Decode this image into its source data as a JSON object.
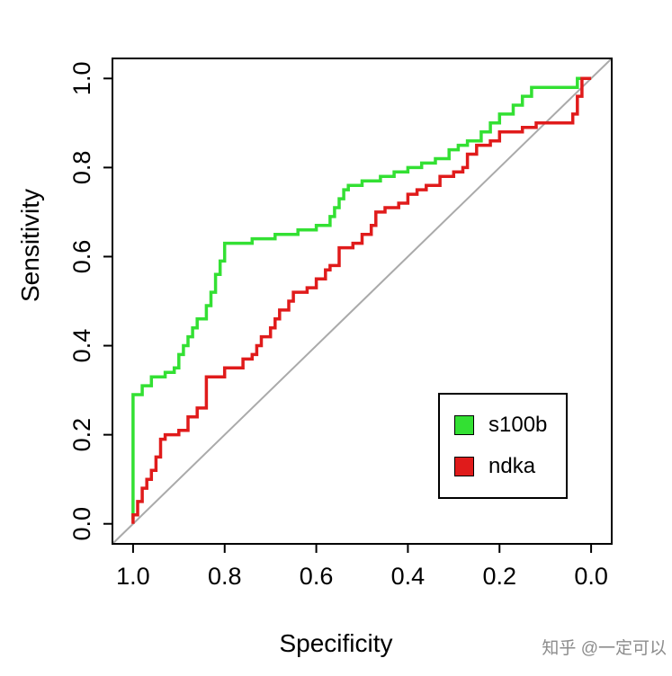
{
  "watermark": "知乎 @一定可以",
  "chart_data": {
    "type": "line",
    "title": "",
    "xlabel": "Specificity",
    "ylabel": "Sensitivity",
    "x_ticks": [
      "1.0",
      "0.8",
      "0.6",
      "0.4",
      "0.2",
      "0.0"
    ],
    "y_ticks": [
      "0.0",
      "0.2",
      "0.4",
      "0.6",
      "0.8",
      "1.0"
    ],
    "xlim": [
      1.0,
      0.0
    ],
    "ylim": [
      0.0,
      1.0
    ],
    "x_axis_reversed": true,
    "grid": false,
    "legend_position": "lower-right",
    "reference_line": {
      "from": [
        1.0,
        0.0
      ],
      "to": [
        0.0,
        1.0
      ],
      "color": "#aaaaaa"
    },
    "series": [
      {
        "name": "s100b",
        "color": "#33e033",
        "points": [
          [
            1.0,
            0.01
          ],
          [
            1.0,
            0.29
          ],
          [
            0.98,
            0.29
          ],
          [
            0.98,
            0.31
          ],
          [
            0.96,
            0.31
          ],
          [
            0.96,
            0.33
          ],
          [
            0.93,
            0.33
          ],
          [
            0.93,
            0.34
          ],
          [
            0.91,
            0.34
          ],
          [
            0.91,
            0.35
          ],
          [
            0.9,
            0.35
          ],
          [
            0.9,
            0.38
          ],
          [
            0.89,
            0.38
          ],
          [
            0.89,
            0.4
          ],
          [
            0.88,
            0.4
          ],
          [
            0.88,
            0.42
          ],
          [
            0.87,
            0.42
          ],
          [
            0.87,
            0.44
          ],
          [
            0.86,
            0.44
          ],
          [
            0.86,
            0.46
          ],
          [
            0.84,
            0.46
          ],
          [
            0.84,
            0.49
          ],
          [
            0.83,
            0.49
          ],
          [
            0.83,
            0.52
          ],
          [
            0.82,
            0.52
          ],
          [
            0.82,
            0.56
          ],
          [
            0.81,
            0.56
          ],
          [
            0.81,
            0.59
          ],
          [
            0.8,
            0.59
          ],
          [
            0.8,
            0.63
          ],
          [
            0.74,
            0.63
          ],
          [
            0.74,
            0.64
          ],
          [
            0.69,
            0.64
          ],
          [
            0.69,
            0.65
          ],
          [
            0.64,
            0.65
          ],
          [
            0.64,
            0.66
          ],
          [
            0.6,
            0.66
          ],
          [
            0.6,
            0.67
          ],
          [
            0.57,
            0.67
          ],
          [
            0.57,
            0.69
          ],
          [
            0.56,
            0.69
          ],
          [
            0.56,
            0.71
          ],
          [
            0.55,
            0.71
          ],
          [
            0.55,
            0.73
          ],
          [
            0.54,
            0.73
          ],
          [
            0.54,
            0.75
          ],
          [
            0.53,
            0.75
          ],
          [
            0.53,
            0.76
          ],
          [
            0.5,
            0.76
          ],
          [
            0.5,
            0.77
          ],
          [
            0.46,
            0.77
          ],
          [
            0.46,
            0.78
          ],
          [
            0.43,
            0.78
          ],
          [
            0.43,
            0.79
          ],
          [
            0.4,
            0.79
          ],
          [
            0.4,
            0.8
          ],
          [
            0.37,
            0.8
          ],
          [
            0.37,
            0.81
          ],
          [
            0.34,
            0.81
          ],
          [
            0.34,
            0.82
          ],
          [
            0.31,
            0.82
          ],
          [
            0.31,
            0.84
          ],
          [
            0.29,
            0.84
          ],
          [
            0.29,
            0.85
          ],
          [
            0.27,
            0.85
          ],
          [
            0.27,
            0.86
          ],
          [
            0.24,
            0.86
          ],
          [
            0.24,
            0.88
          ],
          [
            0.22,
            0.88
          ],
          [
            0.22,
            0.9
          ],
          [
            0.2,
            0.9
          ],
          [
            0.2,
            0.92
          ],
          [
            0.17,
            0.92
          ],
          [
            0.17,
            0.94
          ],
          [
            0.15,
            0.94
          ],
          [
            0.15,
            0.96
          ],
          [
            0.13,
            0.96
          ],
          [
            0.13,
            0.98
          ],
          [
            0.03,
            0.98
          ],
          [
            0.03,
            1.0
          ],
          [
            0.0,
            1.0
          ]
        ]
      },
      {
        "name": "ndka",
        "color": "#e01b1b",
        "points": [
          [
            1.0,
            0.0
          ],
          [
            1.0,
            0.02
          ],
          [
            0.99,
            0.02
          ],
          [
            0.99,
            0.05
          ],
          [
            0.98,
            0.05
          ],
          [
            0.98,
            0.08
          ],
          [
            0.97,
            0.08
          ],
          [
            0.97,
            0.1
          ],
          [
            0.96,
            0.1
          ],
          [
            0.96,
            0.12
          ],
          [
            0.95,
            0.12
          ],
          [
            0.95,
            0.15
          ],
          [
            0.94,
            0.15
          ],
          [
            0.94,
            0.19
          ],
          [
            0.93,
            0.19
          ],
          [
            0.93,
            0.2
          ],
          [
            0.9,
            0.2
          ],
          [
            0.9,
            0.21
          ],
          [
            0.88,
            0.21
          ],
          [
            0.88,
            0.24
          ],
          [
            0.86,
            0.24
          ],
          [
            0.86,
            0.26
          ],
          [
            0.84,
            0.26
          ],
          [
            0.84,
            0.33
          ],
          [
            0.8,
            0.33
          ],
          [
            0.8,
            0.35
          ],
          [
            0.76,
            0.35
          ],
          [
            0.76,
            0.37
          ],
          [
            0.74,
            0.37
          ],
          [
            0.74,
            0.38
          ],
          [
            0.73,
            0.38
          ],
          [
            0.73,
            0.4
          ],
          [
            0.72,
            0.4
          ],
          [
            0.72,
            0.42
          ],
          [
            0.7,
            0.42
          ],
          [
            0.7,
            0.44
          ],
          [
            0.69,
            0.44
          ],
          [
            0.69,
            0.46
          ],
          [
            0.68,
            0.46
          ],
          [
            0.68,
            0.48
          ],
          [
            0.66,
            0.48
          ],
          [
            0.66,
            0.5
          ],
          [
            0.65,
            0.5
          ],
          [
            0.65,
            0.52
          ],
          [
            0.62,
            0.52
          ],
          [
            0.62,
            0.53
          ],
          [
            0.6,
            0.53
          ],
          [
            0.6,
            0.55
          ],
          [
            0.58,
            0.55
          ],
          [
            0.58,
            0.57
          ],
          [
            0.57,
            0.57
          ],
          [
            0.57,
            0.58
          ],
          [
            0.55,
            0.58
          ],
          [
            0.55,
            0.62
          ],
          [
            0.52,
            0.62
          ],
          [
            0.52,
            0.63
          ],
          [
            0.5,
            0.63
          ],
          [
            0.5,
            0.65
          ],
          [
            0.48,
            0.65
          ],
          [
            0.48,
            0.67
          ],
          [
            0.47,
            0.67
          ],
          [
            0.47,
            0.7
          ],
          [
            0.45,
            0.7
          ],
          [
            0.45,
            0.71
          ],
          [
            0.42,
            0.71
          ],
          [
            0.42,
            0.72
          ],
          [
            0.4,
            0.72
          ],
          [
            0.4,
            0.74
          ],
          [
            0.38,
            0.74
          ],
          [
            0.38,
            0.75
          ],
          [
            0.36,
            0.75
          ],
          [
            0.36,
            0.76
          ],
          [
            0.33,
            0.76
          ],
          [
            0.33,
            0.78
          ],
          [
            0.3,
            0.78
          ],
          [
            0.3,
            0.79
          ],
          [
            0.28,
            0.79
          ],
          [
            0.28,
            0.8
          ],
          [
            0.27,
            0.8
          ],
          [
            0.27,
            0.83
          ],
          [
            0.25,
            0.83
          ],
          [
            0.25,
            0.85
          ],
          [
            0.22,
            0.85
          ],
          [
            0.22,
            0.86
          ],
          [
            0.2,
            0.86
          ],
          [
            0.2,
            0.88
          ],
          [
            0.15,
            0.88
          ],
          [
            0.15,
            0.89
          ],
          [
            0.12,
            0.89
          ],
          [
            0.12,
            0.9
          ],
          [
            0.04,
            0.9
          ],
          [
            0.04,
            0.92
          ],
          [
            0.03,
            0.92
          ],
          [
            0.03,
            0.96
          ],
          [
            0.02,
            0.96
          ],
          [
            0.02,
            1.0
          ],
          [
            0.0,
            1.0
          ]
        ]
      }
    ]
  },
  "legend": {
    "items": [
      {
        "label": "s100b",
        "color": "#33e033"
      },
      {
        "label": "ndka",
        "color": "#e01b1b"
      }
    ]
  }
}
